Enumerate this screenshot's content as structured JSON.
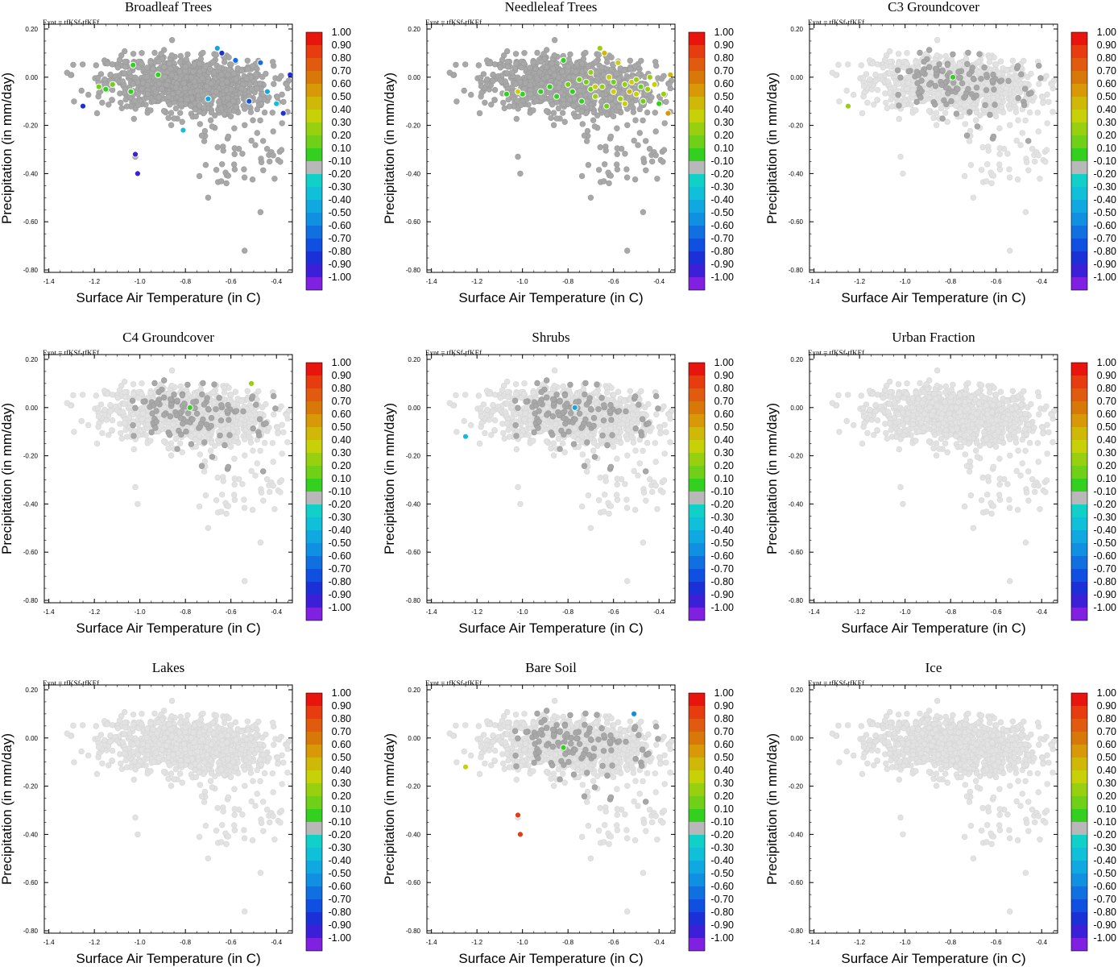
{
  "figure": {
    "expt_label": "Expt = tfKSf-tfKEf",
    "colorbar_ticks": [
      "1.00",
      "0.90",
      "0.80",
      "0.70",
      "0.60",
      "0.50",
      "0.40",
      "0.30",
      "0.20",
      "0.10",
      "-0.10",
      "-0.20",
      "-0.30",
      "-0.40",
      "-0.50",
      "-0.60",
      "-0.70",
      "-0.80",
      "-0.90",
      "-1.00"
    ],
    "colorbar_colors": [
      "#e8140e",
      "#e63c10",
      "#e05a10",
      "#d87808",
      "#d89808",
      "#d0b808",
      "#c8d008",
      "#98d010",
      "#70d018",
      "#34d020",
      "#b8b8b8",
      "#10d0c8",
      "#10c0d8",
      "#10a8e0",
      "#1090e0",
      "#1070e0",
      "#1050e0",
      "#1c30d8",
      "#3c20d8",
      "#8020e0"
    ],
    "neutral_colors": {
      "light": "#e2e2e2",
      "dark": "#a8a8a8"
    }
  },
  "chart_data": [
    {
      "type": "scatter",
      "title": "Broadleaf Trees",
      "xlabel": "Surface Air Temperature (in C)",
      "ylabel": "Precipitation (in mm/day)",
      "xlim": [
        -1.42,
        -0.33
      ],
      "ylim": [
        -0.81,
        0.22
      ],
      "xticks": [
        "-1.4",
        "-1.2",
        "-1.0",
        "-0.8",
        "-0.6",
        "-0.4"
      ],
      "yticks": [
        "0.20",
        "0.00",
        "-0.20",
        "-0.40",
        "-0.60",
        "-0.80"
      ],
      "background_shade": "dark",
      "colored_points": [
        {
          "x": -1.25,
          "y": -0.12,
          "v": -0.7
        },
        {
          "x": -1.02,
          "y": -0.32,
          "v": -0.8
        },
        {
          "x": -1.01,
          "y": -0.4,
          "v": -0.8
        },
        {
          "x": -0.81,
          "y": -0.22,
          "v": -0.2
        },
        {
          "x": -1.18,
          "y": -0.04,
          "v": 0.2
        },
        {
          "x": -1.15,
          "y": -0.05,
          "v": 0.1
        },
        {
          "x": -1.12,
          "y": -0.03,
          "v": 0.2
        },
        {
          "x": -1.04,
          "y": -0.06,
          "v": 0.1
        },
        {
          "x": -0.92,
          "y": 0.01,
          "v": 0.1
        },
        {
          "x": -1.03,
          "y": 0.05,
          "v": 0.1
        },
        {
          "x": -0.64,
          "y": 0.1,
          "v": -0.7
        },
        {
          "x": -0.58,
          "y": 0.07,
          "v": -0.5
        },
        {
          "x": -0.52,
          "y": -0.1,
          "v": -0.6
        },
        {
          "x": -0.44,
          "y": -0.06,
          "v": -0.3
        },
        {
          "x": -0.4,
          "y": -0.11,
          "v": -0.2
        },
        {
          "x": -0.37,
          "y": -0.15,
          "v": -0.7
        },
        {
          "x": -0.34,
          "y": 0.01,
          "v": -0.7
        },
        {
          "x": -0.66,
          "y": 0.12,
          "v": -0.3
        },
        {
          "x": -0.7,
          "y": -0.09,
          "v": -0.3
        },
        {
          "x": -0.47,
          "y": 0.06,
          "v": -0.5
        }
      ]
    },
    {
      "type": "scatter",
      "title": "Needleleaf Trees",
      "xlabel": "Surface Air Temperature (in C)",
      "ylabel": "Precipitation (in mm/day)",
      "xlim": [
        -1.42,
        -0.33
      ],
      "ylim": [
        -0.81,
        0.22
      ],
      "xticks": [
        "-1.4",
        "-1.2",
        "-1.0",
        "-0.8",
        "-0.6",
        "-0.4"
      ],
      "yticks": [
        "0.20",
        "0.00",
        "-0.20",
        "-0.40",
        "-0.60",
        "-0.80"
      ],
      "background_shade": "dark",
      "colored_points": [
        {
          "x": -0.7,
          "y": -0.05,
          "v": 0.2
        },
        {
          "x": -0.65,
          "y": -0.04,
          "v": 0.3
        },
        {
          "x": -0.6,
          "y": -0.06,
          "v": 0.4
        },
        {
          "x": -0.55,
          "y": -0.03,
          "v": 0.3
        },
        {
          "x": -0.5,
          "y": -0.07,
          "v": 0.4
        },
        {
          "x": -0.45,
          "y": -0.05,
          "v": 0.3
        },
        {
          "x": -0.72,
          "y": -0.02,
          "v": 0.2
        },
        {
          "x": -0.68,
          "y": -0.08,
          "v": 0.3
        },
        {
          "x": -0.62,
          "y": 0.0,
          "v": 0.4
        },
        {
          "x": -0.57,
          "y": -0.09,
          "v": 0.3
        },
        {
          "x": -0.52,
          "y": -0.02,
          "v": 0.4
        },
        {
          "x": -0.47,
          "y": -0.1,
          "v": 0.2
        },
        {
          "x": -0.42,
          "y": -0.03,
          "v": 0.4
        },
        {
          "x": -0.4,
          "y": -0.11,
          "v": 0.1
        },
        {
          "x": -0.38,
          "y": -0.07,
          "v": 0.3
        },
        {
          "x": -0.36,
          "y": -0.15,
          "v": 0.6
        },
        {
          "x": -0.35,
          "y": 0.01,
          "v": 0.5
        },
        {
          "x": -0.78,
          "y": -0.06,
          "v": 0.1
        },
        {
          "x": -0.8,
          "y": -0.03,
          "v": 0.2
        },
        {
          "x": -0.85,
          "y": -0.08,
          "v": 0.1
        },
        {
          "x": -0.88,
          "y": -0.04,
          "v": 0.1
        },
        {
          "x": -0.92,
          "y": -0.06,
          "v": 0.1
        },
        {
          "x": -1.0,
          "y": -0.07,
          "v": 0.1
        },
        {
          "x": -1.02,
          "y": -0.06,
          "v": 0.4
        },
        {
          "x": -0.82,
          "y": 0.07,
          "v": 0.1
        },
        {
          "x": -0.66,
          "y": 0.12,
          "v": 0.3
        },
        {
          "x": -0.64,
          "y": 0.1,
          "v": 0.5
        },
        {
          "x": -0.58,
          "y": 0.06,
          "v": 0.4
        },
        {
          "x": -0.74,
          "y": -0.1,
          "v": 0.1
        },
        {
          "x": -0.63,
          "y": -0.12,
          "v": 0.2
        },
        {
          "x": -0.55,
          "y": -0.11,
          "v": 0.4
        },
        {
          "x": -0.48,
          "y": -0.04,
          "v": 0.2
        },
        {
          "x": -0.44,
          "y": 0.0,
          "v": 0.3
        },
        {
          "x": -0.6,
          "y": -0.02,
          "v": 0.2
        },
        {
          "x": -0.68,
          "y": -0.04,
          "v": 0.4
        },
        {
          "x": -0.75,
          "y": -0.01,
          "v": 0.2
        },
        {
          "x": -1.07,
          "y": -0.07,
          "v": 0.1
        },
        {
          "x": -0.53,
          "y": -0.06,
          "v": 0.5
        },
        {
          "x": -0.5,
          "y": -0.01,
          "v": 0.3
        },
        {
          "x": -0.7,
          "y": 0.02,
          "v": 0.3
        }
      ]
    },
    {
      "type": "scatter",
      "title": "C3 Groundcover",
      "xlabel": "Surface Air Temperature (in C)",
      "ylabel": "Precipitation (in mm/day)",
      "xlim": [
        -1.42,
        -0.33
      ],
      "ylim": [
        -0.81,
        0.22
      ],
      "xticks": [
        "-1.4",
        "-1.2",
        "-1.0",
        "-0.8",
        "-0.6",
        "-0.4"
      ],
      "yticks": [
        "0.20",
        "0.00",
        "-0.20",
        "-0.40",
        "-0.60",
        "-0.80"
      ],
      "background_shade": "light",
      "colored_points": [
        {
          "x": -1.25,
          "y": -0.12,
          "v": 0.3
        },
        {
          "x": -0.79,
          "y": 0.0,
          "v": 0.1
        }
      ]
    },
    {
      "type": "scatter",
      "title": "C4 Groundcover",
      "xlabel": "Surface Air Temperature (in C)",
      "ylabel": "Precipitation (in mm/day)",
      "xlim": [
        -1.42,
        -0.33
      ],
      "ylim": [
        -0.81,
        0.22
      ],
      "xticks": [
        "-1.4",
        "-1.2",
        "-1.0",
        "-0.8",
        "-0.6",
        "-0.4"
      ],
      "yticks": [
        "0.20",
        "0.00",
        "-0.20",
        "-0.40",
        "-0.60",
        "-0.80"
      ],
      "background_shade": "light",
      "colored_points": [
        {
          "x": -0.78,
          "y": 0.0,
          "v": 0.1
        },
        {
          "x": -0.51,
          "y": 0.1,
          "v": 0.3
        }
      ]
    },
    {
      "type": "scatter",
      "title": "Shrubs",
      "xlabel": "Surface Air Temperature (in C)",
      "ylabel": "Precipitation (in mm/day)",
      "xlim": [
        -1.42,
        -0.33
      ],
      "ylim": [
        -0.81,
        0.22
      ],
      "xticks": [
        "-1.4",
        "-1.2",
        "-1.0",
        "-0.8",
        "-0.6",
        "-0.4"
      ],
      "yticks": [
        "0.20",
        "0.00",
        "-0.20",
        "-0.40",
        "-0.60",
        "-0.80"
      ],
      "background_shade": "light",
      "colored_points": [
        {
          "x": -1.25,
          "y": -0.12,
          "v": -0.2
        },
        {
          "x": -0.77,
          "y": 0.0,
          "v": -0.3
        }
      ]
    },
    {
      "type": "scatter",
      "title": "Urban Fraction",
      "xlabel": "Surface Air Temperature (in C)",
      "ylabel": "Precipitation (in mm/day)",
      "xlim": [
        -1.42,
        -0.33
      ],
      "ylim": [
        -0.81,
        0.22
      ],
      "xticks": [
        "-1.4",
        "-1.2",
        "-1.0",
        "-0.8",
        "-0.6",
        "-0.4"
      ],
      "yticks": [
        "0.20",
        "0.00",
        "-0.20",
        "-0.40",
        "-0.60",
        "-0.80"
      ],
      "background_shade": "light",
      "colored_points": []
    },
    {
      "type": "scatter",
      "title": "Lakes",
      "xlabel": "Surface Air Temperature (in C)",
      "ylabel": "Precipitation (in mm/day)",
      "xlim": [
        -1.42,
        -0.33
      ],
      "ylim": [
        -0.81,
        0.22
      ],
      "xticks": [
        "-1.4",
        "-1.2",
        "-1.0",
        "-0.8",
        "-0.6",
        "-0.4"
      ],
      "yticks": [
        "0.20",
        "0.00",
        "-0.20",
        "-0.40",
        "-0.60",
        "-0.80"
      ],
      "background_shade": "light",
      "colored_points": []
    },
    {
      "type": "scatter",
      "title": "Bare Soil",
      "xlabel": "Surface Air Temperature (in C)",
      "ylabel": "Precipitation (in mm/day)",
      "xlim": [
        -1.42,
        -0.33
      ],
      "ylim": [
        -0.81,
        0.22
      ],
      "xticks": [
        "-1.4",
        "-1.2",
        "-1.0",
        "-0.8",
        "-0.6",
        "-0.4"
      ],
      "yticks": [
        "0.20",
        "0.00",
        "-0.20",
        "-0.40",
        "-0.60",
        "-0.80"
      ],
      "background_shade": "light",
      "colored_points": [
        {
          "x": -1.25,
          "y": -0.12,
          "v": 0.4
        },
        {
          "x": -0.82,
          "y": -0.04,
          "v": 0.1
        },
        {
          "x": -0.51,
          "y": 0.1,
          "v": -0.4
        },
        {
          "x": -1.02,
          "y": -0.32,
          "v": 0.9
        },
        {
          "x": -1.01,
          "y": -0.4,
          "v": 0.9
        }
      ]
    },
    {
      "type": "scatter",
      "title": "Ice",
      "xlabel": "Surface Air Temperature (in C)",
      "ylabel": "Precipitation (in mm/day)",
      "xlim": [
        -1.42,
        -0.33
      ],
      "ylim": [
        -0.81,
        0.22
      ],
      "xticks": [
        "-1.4",
        "-1.2",
        "-1.0",
        "-0.8",
        "-0.6",
        "-0.4"
      ],
      "yticks": [
        "0.20",
        "0.00",
        "-0.20",
        "-0.40",
        "-0.60",
        "-0.80"
      ],
      "background_shade": "light",
      "colored_points": []
    }
  ]
}
